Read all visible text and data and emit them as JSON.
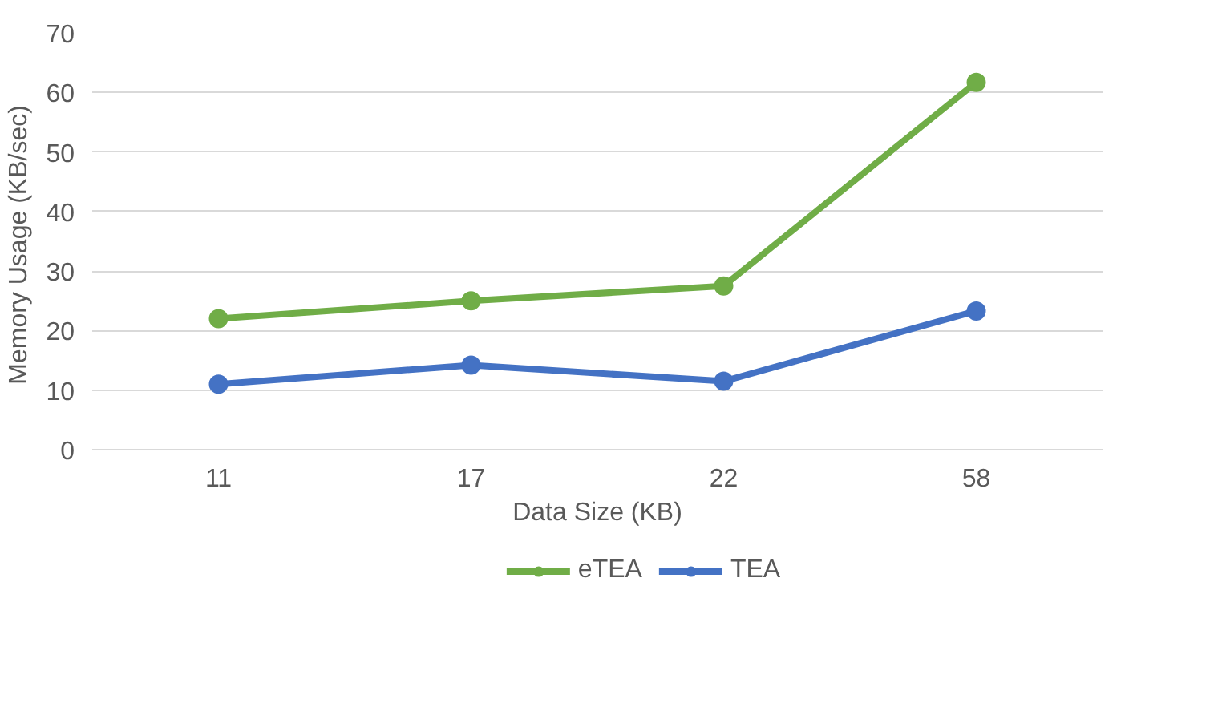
{
  "chart_data": {
    "type": "line",
    "xlabel": "Data Size (KB)",
    "ylabel": "Memory  Usage (KB/sec)",
    "categories": [
      "11",
      "17",
      "22",
      "58"
    ],
    "series": [
      {
        "name": "eTEA",
        "color": "#70ad47",
        "values": [
          22,
          25,
          27.5,
          61.7
        ]
      },
      {
        "name": "TEA",
        "color": "#4472c4",
        "values": [
          11,
          14.2,
          11.5,
          23.3
        ]
      }
    ],
    "ylim": [
      0,
      70
    ],
    "yticks": [
      0,
      10,
      20,
      30,
      40,
      50,
      60,
      70
    ],
    "grid": "y",
    "legend": "bottom",
    "marker": "circle",
    "line_style": "solid"
  }
}
